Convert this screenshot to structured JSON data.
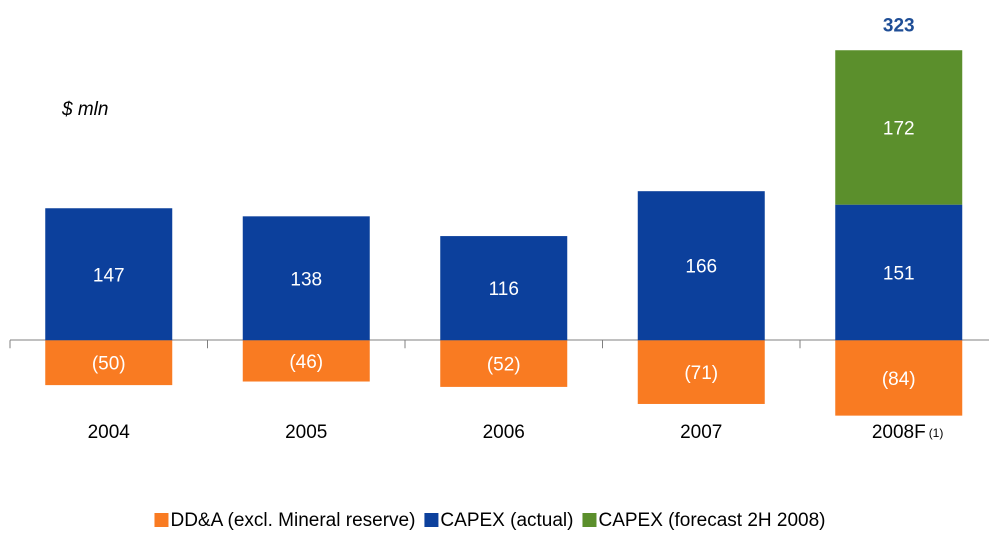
{
  "chart_data": {
    "type": "stacked-bar",
    "unit_label": "$ mln",
    "categories": [
      "2004",
      "2005",
      "2006",
      "2007",
      "2008F"
    ],
    "category_notes": [
      null,
      null,
      null,
      null,
      "(1)"
    ],
    "series": [
      {
        "name": "DD&A (excl. Mineral reserve)",
        "color": "#f97b22",
        "values": [
          -50,
          -46,
          -52,
          -71,
          -84
        ],
        "value_labels": [
          "(50)",
          "(46)",
          "(52)",
          "(71)",
          "(84)"
        ]
      },
      {
        "name": "CAPEX (actual)",
        "color": "#0c409c",
        "values": [
          147,
          138,
          116,
          166,
          151
        ]
      },
      {
        "name": "CAPEX (forecast 2H 2008)",
        "color": "#5b8f2c",
        "values": [
          null,
          null,
          null,
          null,
          172
        ]
      }
    ],
    "totals": [
      null,
      null,
      null,
      null,
      323
    ],
    "ylim": [
      -100,
      350
    ]
  }
}
